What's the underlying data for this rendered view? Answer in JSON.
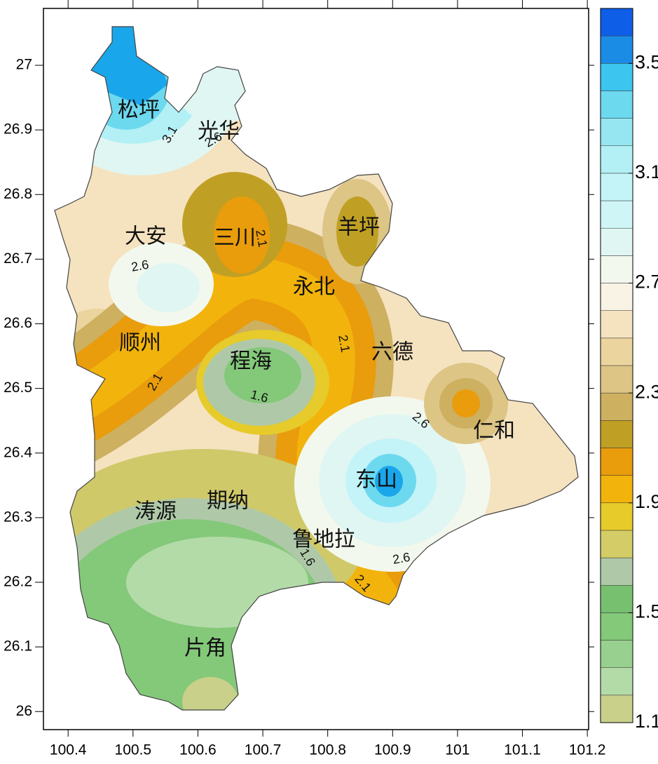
{
  "map": {
    "xlim": [
      100.362,
      101.202
    ],
    "ylim": [
      25.972,
      27.088
    ],
    "xticks": [
      100.4,
      100.5,
      100.6,
      100.7,
      100.8,
      100.9,
      101,
      101.1,
      101.2
    ],
    "yticks": [
      26,
      26.1,
      26.2,
      26.3,
      26.4,
      26.5,
      26.6,
      26.7,
      26.8,
      26.9,
      27
    ],
    "places": [
      "松坪",
      "光华",
      "大安",
      "三川",
      "羊坪",
      "永北",
      "顺州",
      "程海",
      "六德",
      "仁和",
      "东山",
      "涛源",
      "期纳",
      "鲁地拉",
      "片角"
    ],
    "contour_labels": [
      3.1,
      2.6,
      2.1,
      2.6,
      2.1,
      2.1,
      1.6,
      2.6,
      1.6,
      2.6,
      2.1
    ],
    "colorbar": {
      "range": [
        1.1,
        3.7
      ],
      "ticks": [
        1.1,
        1.5,
        1.9,
        2.3,
        2.7,
        3.1,
        3.5
      ],
      "colors": [
        "#c9d08a",
        "#b3dba8",
        "#98d08f",
        "#84c87a",
        "#77c070",
        "#afc9a8",
        "#d4cc66",
        "#e6cb2a",
        "#f2b40c",
        "#e99c0c",
        "#c0a024",
        "#cdb060",
        "#dcc585",
        "#ecd49e",
        "#f5e2bf",
        "#f8f3e4",
        "#f3f8ee",
        "#e0f6f2",
        "#cff5f6",
        "#c4f3f8",
        "#b2f0f5",
        "#95e6f1",
        "#6cd9ef",
        "#3cc5ef",
        "#1b8ce6",
        "#0f5ee8"
      ]
    }
  }
}
